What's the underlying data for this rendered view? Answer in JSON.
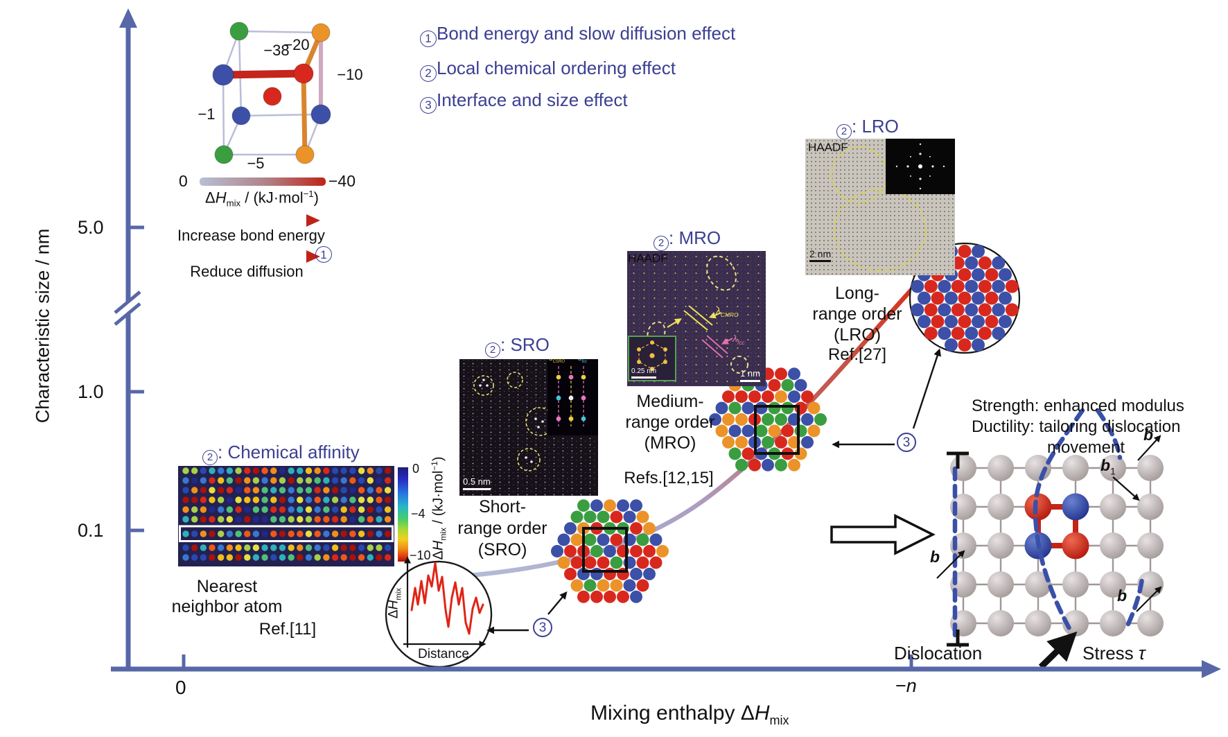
{
  "colors": {
    "axis": "#5767a7",
    "indigo": "#3b3f92",
    "red": "#d8281e",
    "blue": "#3c50a8",
    "green": "#3a9e40",
    "orange": "#eb9329",
    "gray_atom": "#b6adad",
    "dash_blue": "#3a50a8",
    "curve_start": "#b4c0da",
    "curve_end": "#d83018",
    "jet": [
      "#a81208",
      "#d82818",
      "#f05818",
      "#f09018",
      "#f0c018",
      "#e8e040",
      "#a8d048",
      "#50c078",
      "#30b0b8",
      "#3878d0",
      "#2848b0",
      "#202888"
    ]
  },
  "axes": {
    "y_label": "Characteristic size / nm",
    "y_ticks": [
      "5.0",
      "1.0",
      "0.1"
    ],
    "x_tick_0": "0",
    "x_tick_n_minus": "−",
    "x_tick_n_var": "n",
    "x_label_prefix": "Mixing enthalpy "
  },
  "dh": {
    "delta": "Δ",
    "h": "H",
    "mix": "mix",
    "unit": " / (kJ·mol",
    "sup": "−1",
    "close": ")"
  },
  "legend": {
    "items": [
      {
        "num": "1",
        "text": "Bond energy and slow diffusion effect"
      },
      {
        "num": "2",
        "text": "Local chemical ordering effect"
      },
      {
        "num": "3",
        "text": "Interface and size effect"
      }
    ]
  },
  "cube": {
    "b38": "−38",
    "b20": "−20",
    "b10": "−10",
    "b1": "−1",
    "b5": "−5",
    "scale_0": "0",
    "scale_40": "−40",
    "arrow1": "Increase bond energy",
    "arrow2": "Reduce diffusion",
    "circ": "1"
  },
  "chem": {
    "num": "2",
    "title": ": Chemical affinity",
    "ticks": [
      "0",
      "−4",
      "−10"
    ],
    "cap1": "Nearest",
    "cap2": "neighbor atom",
    "ref": "Ref.[11]"
  },
  "sro": {
    "num": "2",
    "title": ": SRO",
    "scalebar": "0.5 nm",
    "d": "d",
    "d1sub": "CSRO",
    "d2sub": "fcc",
    "cap": [
      "Short-",
      "range order",
      "(SRO)"
    ]
  },
  "mro": {
    "num": "2",
    "title": ": MRO",
    "haadf": "HAADF",
    "inset_bar": "0.25 nm",
    "bar": "1 nm",
    "lam": "λ",
    "lam1sub": "CMRO",
    "lam2sub": "fcc",
    "cap": [
      "Medium-",
      "range order",
      "(MRO)"
    ],
    "ref": "Refs.[12,15]"
  },
  "lro": {
    "num": "2",
    "title": ": LRO",
    "haadf": "HAADF",
    "bar": "2 nm",
    "cap": [
      "Long-",
      "range order",
      "(LRO)"
    ],
    "ref": "Ref.[27]"
  },
  "inset": {
    "xlabel": "Distance"
  },
  "markers": {
    "three": "3"
  },
  "strength": {
    "l1": "Strength: enhanced modulus",
    "l2": "Ductility: tailoring dislocation",
    "l3": "movement"
  },
  "disloc": {
    "label": "Dislocation",
    "stress": "Stress ",
    "tau": "τ",
    "b": "b",
    "b1sub": "1"
  }
}
